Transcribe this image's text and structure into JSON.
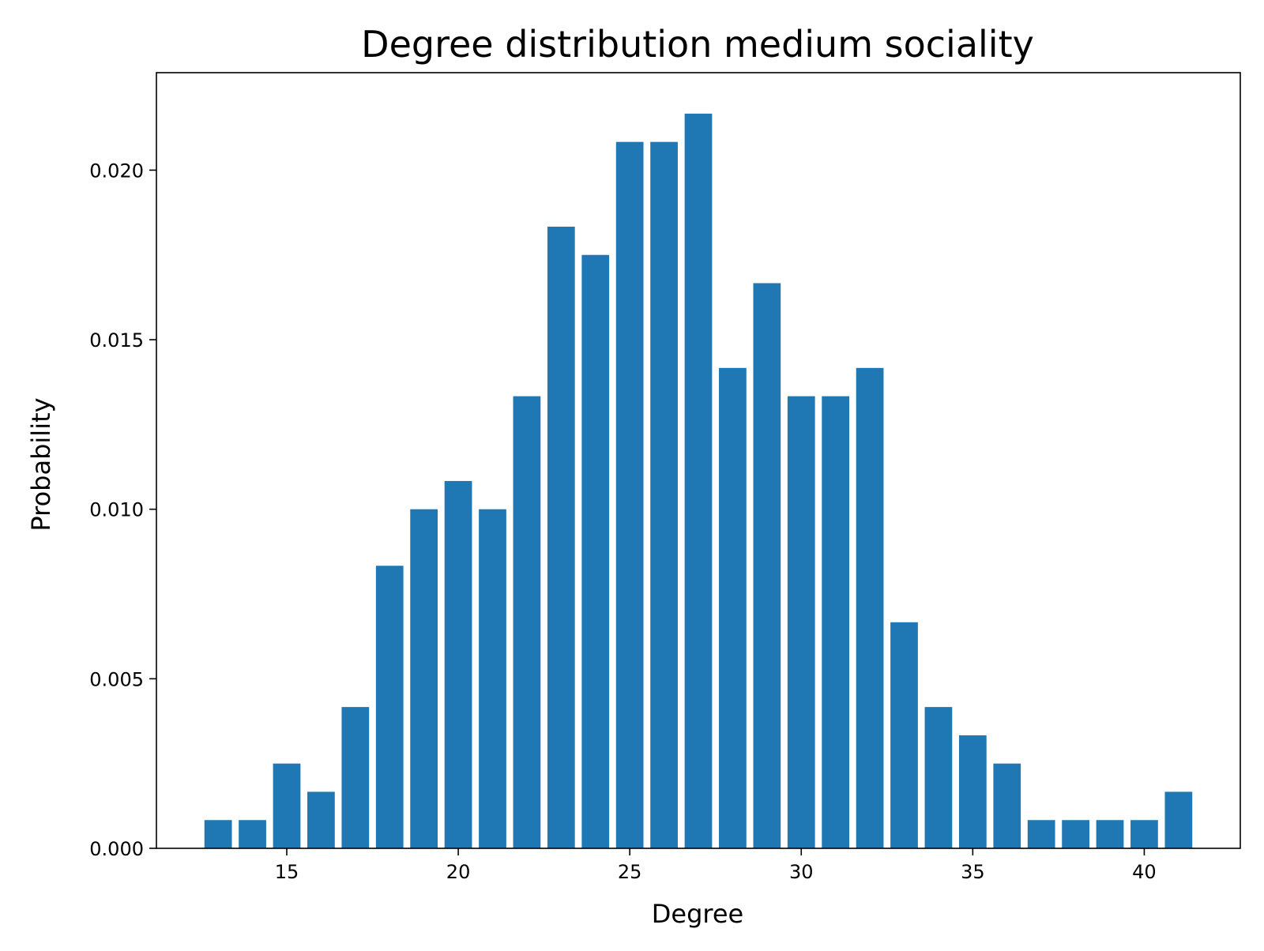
{
  "chart_data": {
    "type": "bar",
    "title": "Degree distribution medium sociality",
    "xlabel": "Degree",
    "ylabel": "Probability",
    "x": [
      13,
      14,
      15,
      16,
      17,
      18,
      19,
      20,
      21,
      22,
      23,
      24,
      25,
      26,
      27,
      28,
      29,
      30,
      31,
      32,
      33,
      34,
      35,
      36,
      37,
      38,
      39,
      40,
      41
    ],
    "values": [
      0.000833,
      0.000833,
      0.0025,
      0.001667,
      0.004167,
      0.008333,
      0.01,
      0.010833,
      0.01,
      0.013333,
      0.018333,
      0.0175,
      0.020833,
      0.020833,
      0.021667,
      0.014167,
      0.016667,
      0.013333,
      0.013333,
      0.014167,
      0.006667,
      0.004167,
      0.003333,
      0.0025,
      0.000833,
      0.000833,
      0.000833,
      0.000833,
      0.001667
    ],
    "xlim": [
      11.2,
      42.8
    ],
    "ylim": [
      0,
      0.022875
    ],
    "xticks": [
      15,
      20,
      25,
      30,
      35,
      40
    ],
    "xtick_labels": [
      "15",
      "20",
      "25",
      "30",
      "35",
      "40"
    ],
    "yticks": [
      0,
      0.005,
      0.01,
      0.015,
      0.02
    ],
    "ytick_labels": [
      "0.000",
      "0.005",
      "0.010",
      "0.015",
      "0.020"
    ],
    "bar_color": "#1f77b4",
    "grid": false,
    "legend": false
  }
}
